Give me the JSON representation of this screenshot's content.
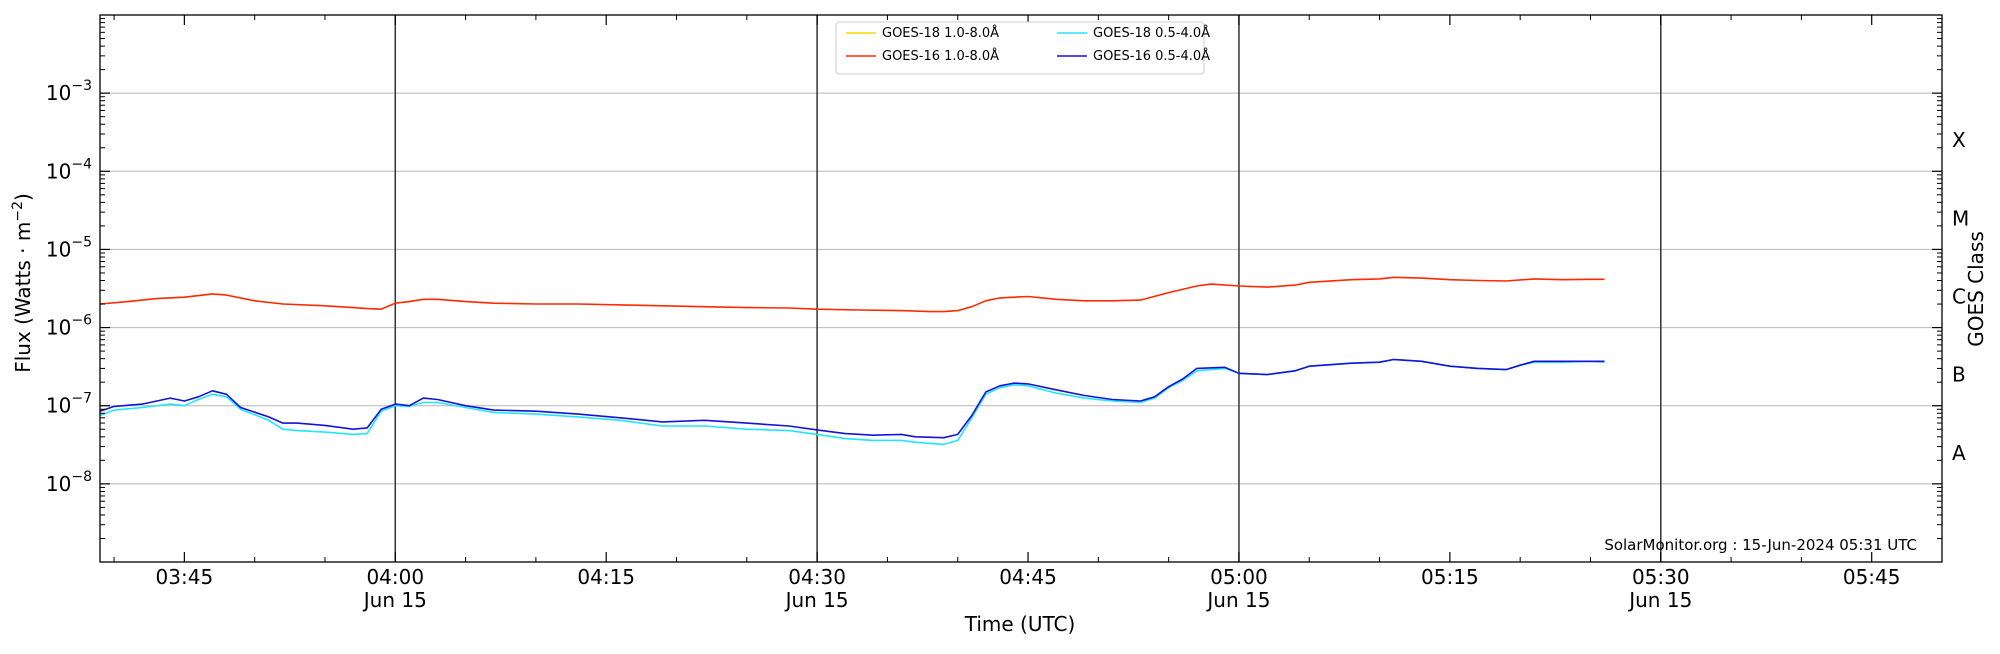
{
  "chart_data": {
    "type": "line",
    "ylabel": "Flux (Watts · m",
    "ylabel_exponent": "−2",
    "ylabel_close": ")",
    "xlabel": "Time (UTC)",
    "right_label": "GOES Class",
    "y_scale": "log",
    "ylim": [
      1e-09,
      0.01
    ],
    "xlim": [
      "03:39",
      "05:50"
    ],
    "y_ticks": [
      {
        "value": 1e-08,
        "label": "10",
        "exp": "−8"
      },
      {
        "value": 1e-07,
        "label": "10",
        "exp": "−7"
      },
      {
        "value": 1e-06,
        "label": "10",
        "exp": "−6"
      },
      {
        "value": 1e-05,
        "label": "10",
        "exp": "−5"
      },
      {
        "value": 0.0001,
        "label": "10",
        "exp": "−4"
      },
      {
        "value": 0.001,
        "label": "10",
        "exp": "−3"
      }
    ],
    "x_ticks": [
      {
        "t": "03:45",
        "label": "03:45",
        "sub": ""
      },
      {
        "t": "04:00",
        "label": "04:00",
        "sub": "Jun 15"
      },
      {
        "t": "04:15",
        "label": "04:15",
        "sub": ""
      },
      {
        "t": "04:30",
        "label": "04:30",
        "sub": "Jun 15"
      },
      {
        "t": "04:45",
        "label": "04:45",
        "sub": ""
      },
      {
        "t": "05:00",
        "label": "05:00",
        "sub": "Jun 15"
      },
      {
        "t": "05:15",
        "label": "05:15",
        "sub": ""
      },
      {
        "t": "05:30",
        "label": "05:30",
        "sub": "Jun 15"
      },
      {
        "t": "05:45",
        "label": "05:45",
        "sub": ""
      }
    ],
    "vertical_lines": [
      "04:00",
      "04:30",
      "05:00",
      "05:30"
    ],
    "goes_classes": [
      {
        "label": "A",
        "flux": 2.5e-08
      },
      {
        "label": "B",
        "flux": 2.5e-07
      },
      {
        "label": "C",
        "flux": 2.5e-06
      },
      {
        "label": "M",
        "flux": 2.5e-05
      },
      {
        "label": "X",
        "flux": 0.00025
      }
    ],
    "grid": true,
    "legend_position": "top-center",
    "series": [
      {
        "name": "GOES-18 1.0-8.0Å",
        "color": "#ffd700",
        "x": [],
        "y": []
      },
      {
        "name": "GOES-16 1.0-8.0Å",
        "color": "#ff2a00",
        "x": [
          "03:39",
          "03:41",
          "03:43",
          "03:45",
          "03:47",
          "03:48",
          "03:50",
          "03:52",
          "03:55",
          "03:57",
          "03:58",
          "03:59",
          "04:00",
          "04:01",
          "04:02",
          "04:03",
          "04:05",
          "04:07",
          "04:10",
          "04:13",
          "04:16",
          "04:19",
          "04:22",
          "04:25",
          "04:28",
          "04:30",
          "04:33",
          "04:36",
          "04:38",
          "04:39",
          "04:40",
          "04:41",
          "04:42",
          "04:43",
          "04:45",
          "04:47",
          "04:49",
          "04:51",
          "04:53",
          "04:55",
          "04:57",
          "04:58",
          "05:00",
          "05:02",
          "05:04",
          "05:05",
          "05:08",
          "05:10",
          "05:11",
          "05:13",
          "05:15",
          "05:17",
          "05:19",
          "05:21",
          "05:23",
          "05:25",
          "05:26"
        ],
        "y": [
          2e-06,
          2.15e-06,
          2.35e-06,
          2.45e-06,
          2.7e-06,
          2.6e-06,
          2.2e-06,
          2e-06,
          1.9e-06,
          1.8e-06,
          1.75e-06,
          1.72e-06,
          2.05e-06,
          2.15e-06,
          2.3e-06,
          2.3e-06,
          2.15e-06,
          2.05e-06,
          2e-06,
          2e-06,
          1.95e-06,
          1.9e-06,
          1.85e-06,
          1.8e-06,
          1.78e-06,
          1.72e-06,
          1.68e-06,
          1.65e-06,
          1.6e-06,
          1.6e-06,
          1.65e-06,
          1.85e-06,
          2.2e-06,
          2.4e-06,
          2.5e-06,
          2.3e-06,
          2.2e-06,
          2.2e-06,
          2.25e-06,
          2.8e-06,
          3.4e-06,
          3.6e-06,
          3.4e-06,
          3.3e-06,
          3.5e-06,
          3.8e-06,
          4.1e-06,
          4.2e-06,
          4.4e-06,
          4.3e-06,
          4.1e-06,
          4e-06,
          3.95e-06,
          4.2e-06,
          4.1e-06,
          4.15e-06,
          4.15e-06
        ]
      },
      {
        "name": "GOES-18 0.5-4.0Å",
        "color": "#22e5ff",
        "x": [
          "03:39",
          "03:40",
          "03:42",
          "03:44",
          "03:45",
          "03:46",
          "03:47",
          "03:48",
          "03:49",
          "03:51",
          "03:52",
          "03:53",
          "03:55",
          "03:57",
          "03:58",
          "03:59",
          "04:00",
          "04:01",
          "04:02",
          "04:03",
          "04:05",
          "04:07",
          "04:10",
          "04:13",
          "04:16",
          "04:19",
          "04:22",
          "04:25",
          "04:28",
          "04:30",
          "04:32",
          "04:34",
          "04:36",
          "04:37",
          "04:39",
          "04:40",
          "04:41",
          "04:42",
          "04:43",
          "04:44",
          "04:45",
          "04:47",
          "04:49",
          "04:51",
          "04:53",
          "04:54",
          "04:55",
          "04:56",
          "04:57",
          "04:59",
          "05:00",
          "05:02",
          "05:04",
          "05:05",
          "05:08",
          "05:10",
          "05:11",
          "05:13",
          "05:15",
          "05:17",
          "05:19",
          "05:20",
          "05:21",
          "05:23",
          "05:25",
          "05:26"
        ],
        "y": [
          7.5e-08,
          8.8e-08,
          9.5e-08,
          1.05e-07,
          1e-07,
          1.2e-07,
          1.4e-07,
          1.3e-07,
          9e-08,
          6.5e-08,
          5e-08,
          4.8e-08,
          4.6e-08,
          4.3e-08,
          4.4e-08,
          8.5e-08,
          1e-07,
          9.8e-08,
          1.1e-07,
          1.1e-07,
          9.5e-08,
          8.2e-08,
          7.8e-08,
          7.2e-08,
          6.5e-08,
          5.5e-08,
          5.5e-08,
          5e-08,
          4.8e-08,
          4.3e-08,
          3.8e-08,
          3.6e-08,
          3.6e-08,
          3.4e-08,
          3.2e-08,
          3.6e-08,
          7e-08,
          1.4e-07,
          1.7e-07,
          1.85e-07,
          1.8e-07,
          1.45e-07,
          1.25e-07,
          1.15e-07,
          1.1e-07,
          1.25e-07,
          1.7e-07,
          2.1e-07,
          2.8e-07,
          3e-07,
          2.6e-07,
          2.5e-07,
          2.8e-07,
          3.2e-07,
          3.5e-07,
          3.6e-07,
          3.9e-07,
          3.7e-07,
          3.2e-07,
          3e-07,
          2.9e-07,
          3.3e-07,
          3.6e-07,
          3.6e-07,
          3.7e-07,
          3.6e-07
        ]
      },
      {
        "name": "GOES-16 0.5-4.0Å",
        "color": "#1414d8",
        "x": [
          "03:39",
          "03:40",
          "03:42",
          "03:44",
          "03:45",
          "03:46",
          "03:47",
          "03:48",
          "03:49",
          "03:51",
          "03:52",
          "03:53",
          "03:55",
          "03:57",
          "03:58",
          "03:59",
          "04:00",
          "04:01",
          "04:02",
          "04:03",
          "04:05",
          "04:07",
          "04:10",
          "04:13",
          "04:16",
          "04:19",
          "04:22",
          "04:25",
          "04:28",
          "04:30",
          "04:32",
          "04:34",
          "04:36",
          "04:37",
          "04:39",
          "04:40",
          "04:41",
          "04:42",
          "04:43",
          "04:44",
          "04:45",
          "04:47",
          "04:49",
          "04:51",
          "04:53",
          "04:54",
          "04:55",
          "04:56",
          "04:57",
          "04:59",
          "05:00",
          "05:02",
          "05:04",
          "05:05",
          "05:08",
          "05:10",
          "05:11",
          "05:13",
          "05:15",
          "05:17",
          "05:19",
          "05:20",
          "05:21",
          "05:23",
          "05:25",
          "05:26"
        ],
        "y": [
          8.5e-08,
          9.8e-08,
          1.05e-07,
          1.25e-07,
          1.15e-07,
          1.3e-07,
          1.55e-07,
          1.4e-07,
          9.5e-08,
          7.2e-08,
          6e-08,
          6e-08,
          5.6e-08,
          5e-08,
          5.2e-08,
          9e-08,
          1.05e-07,
          1e-07,
          1.25e-07,
          1.2e-07,
          1e-07,
          8.8e-08,
          8.5e-08,
          7.8e-08,
          7e-08,
          6.2e-08,
          6.5e-08,
          6e-08,
          5.5e-08,
          4.9e-08,
          4.4e-08,
          4.2e-08,
          4.3e-08,
          4e-08,
          3.9e-08,
          4.3e-08,
          7.5e-08,
          1.5e-07,
          1.8e-07,
          1.95e-07,
          1.9e-07,
          1.6e-07,
          1.35e-07,
          1.2e-07,
          1.15e-07,
          1.3e-07,
          1.75e-07,
          2.2e-07,
          3e-07,
          3.1e-07,
          2.6e-07,
          2.5e-07,
          2.8e-07,
          3.2e-07,
          3.5e-07,
          3.6e-07,
          3.9e-07,
          3.7e-07,
          3.2e-07,
          3e-07,
          2.9e-07,
          3.3e-07,
          3.7e-07,
          3.7e-07,
          3.7e-07,
          3.7e-07
        ]
      }
    ],
    "annotation": "SolarMonitor.org : 15-Jun-2024 05:31 UTC"
  }
}
